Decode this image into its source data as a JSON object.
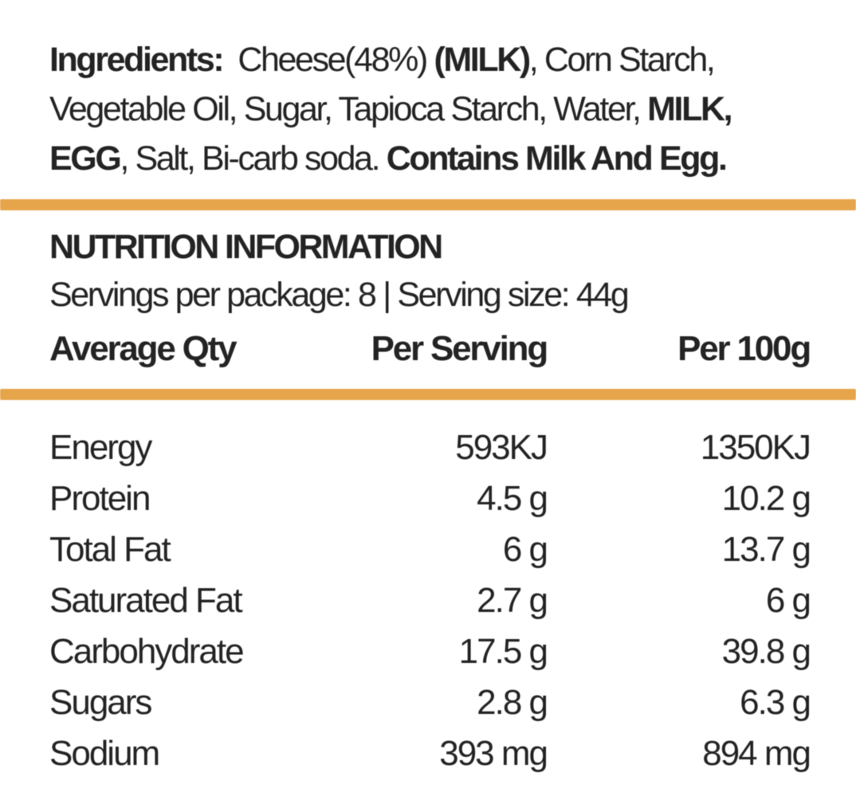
{
  "colors": {
    "accent": "#E7A54B",
    "text": "#232323",
    "background": "#FFFFFF"
  },
  "ingredients": {
    "lines": [
      [
        {
          "text": "Ingredients: ",
          "bold": true
        },
        {
          "text": " Cheese(48%) ",
          "bold": false
        },
        {
          "text": "(MILK)",
          "bold": true
        },
        {
          "text": ", Corn Starch,",
          "bold": false
        }
      ],
      [
        {
          "text": "Vegetable Oil, Sugar, Tapioca Starch, Water, ",
          "bold": false
        },
        {
          "text": "MILK,",
          "bold": true
        }
      ],
      [
        {
          "text": "EGG",
          "bold": true
        },
        {
          "text": ", Salt, Bi-carb soda. ",
          "bold": false
        },
        {
          "text": "Contains Milk And Egg.",
          "bold": true
        }
      ]
    ]
  },
  "nutrition": {
    "title": "NUTRITION INFORMATION",
    "servings_line": "Servings per package: 8 | Serving size: 44g",
    "servings_per_package": "8",
    "serving_size": "44g"
  },
  "table": {
    "headers": [
      "Average Qty",
      "Per Serving",
      "Per 100g"
    ],
    "rows": [
      {
        "label": "Energy",
        "per_serving": "593KJ",
        "per_100g": "1350KJ"
      },
      {
        "label": "Protein",
        "per_serving": "4.5 g",
        "per_100g": "10.2 g"
      },
      {
        "label": "Total Fat",
        "per_serving": "6 g",
        "per_100g": "13.7 g"
      },
      {
        "label": "Saturated Fat",
        "per_serving": "2.7 g",
        "per_100g": "6 g"
      },
      {
        "label": "Carbohydrate",
        "per_serving": "17.5 g",
        "per_100g": "39.8 g"
      },
      {
        "label": "Sugars",
        "per_serving": "2.8 g",
        "per_100g": "6.3 g"
      },
      {
        "label": "Sodium",
        "per_serving": "393 mg",
        "per_100g": "894 mg"
      }
    ]
  }
}
